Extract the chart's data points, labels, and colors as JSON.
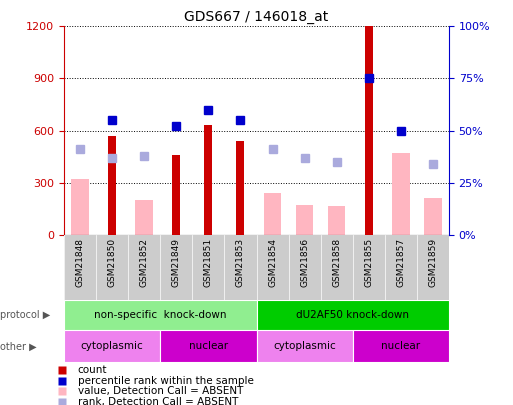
{
  "title": "GDS667 / 146018_at",
  "samples": [
    "GSM21848",
    "GSM21850",
    "GSM21852",
    "GSM21849",
    "GSM21851",
    "GSM21853",
    "GSM21854",
    "GSM21856",
    "GSM21858",
    "GSM21855",
    "GSM21857",
    "GSM21859"
  ],
  "count_values": [
    null,
    570,
    null,
    460,
    630,
    540,
    null,
    null,
    null,
    1200,
    null,
    null
  ],
  "value_absent": [
    320,
    null,
    200,
    null,
    null,
    null,
    240,
    170,
    165,
    null,
    470,
    210
  ],
  "rank_percentile_raw": [
    null,
    55,
    null,
    52,
    60,
    55,
    null,
    null,
    null,
    75,
    50,
    null
  ],
  "rank_absent_raw": [
    41,
    37,
    38,
    null,
    null,
    null,
    41,
    37,
    35,
    null,
    null,
    34
  ],
  "ylim_left": [
    0,
    1200
  ],
  "ylim_right": [
    0,
    100
  ],
  "yticks_left": [
    0,
    300,
    600,
    900,
    1200
  ],
  "yticks_right": [
    0,
    25,
    50,
    75,
    100
  ],
  "ytick_labels_right": [
    "0%",
    "25%",
    "50%",
    "75%",
    "100%"
  ],
  "protocol_groups": [
    {
      "label": "non-specific  knock-down",
      "start": 0,
      "end": 6,
      "color": "#90EE90"
    },
    {
      "label": "dU2AF50 knock-down",
      "start": 6,
      "end": 12,
      "color": "#00CC00"
    }
  ],
  "other_groups": [
    {
      "label": "cytoplasmic",
      "start": 0,
      "end": 3,
      "color": "#EE82EE"
    },
    {
      "label": "nuclear",
      "start": 3,
      "end": 6,
      "color": "#CC00CC"
    },
    {
      "label": "cytoplasmic",
      "start": 6,
      "end": 9,
      "color": "#EE82EE"
    },
    {
      "label": "nuclear",
      "start": 9,
      "end": 12,
      "color": "#CC00CC"
    }
  ],
  "count_color": "#CC0000",
  "value_absent_color": "#FFB6C1",
  "rank_percentile_color": "#0000CC",
  "rank_absent_color": "#AAAADD",
  "bg_color": "#FFFFFF",
  "tick_bg_color": "#CCCCCC",
  "left_axis_color": "#CC0000",
  "right_axis_color": "#0000CC"
}
